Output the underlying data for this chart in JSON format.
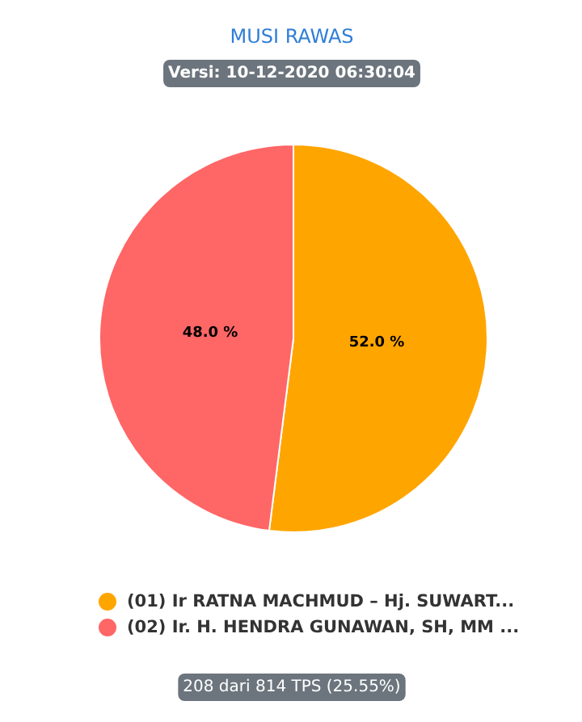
{
  "chart_data": {
    "type": "pie",
    "title": "MUSI RAWAS",
    "subtitle": "Versi: 10-12-2020 06:30:04",
    "categories": [
      "(01) Ir RATNA MACHMUD – Hj. SUWART...",
      "(02) Ir. H. HENDRA GUNAWAN, SH, MM ..."
    ],
    "values": [
      52.0,
      48.0
    ],
    "colors": [
      "#ffa500",
      "#ff6666"
    ],
    "value_labels": [
      "52.0 %",
      "48.0 %"
    ],
    "legend": "bottom",
    "annotations": [
      "208 dari 814 TPS (25.55%)"
    ]
  }
}
